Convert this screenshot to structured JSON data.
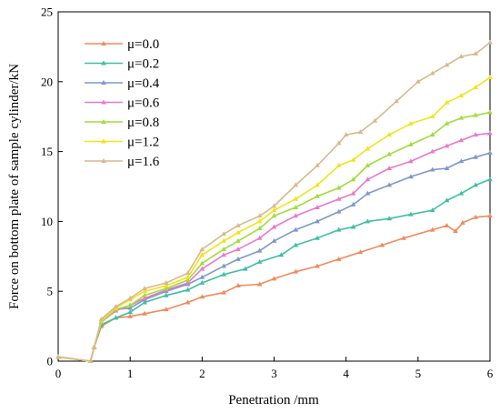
{
  "chart_data": {
    "type": "line",
    "xlabel": "Penetration /mm",
    "ylabel": "Force on bottom plate of sample cylinder/kN",
    "xlim": [
      0,
      6
    ],
    "ylim": [
      0,
      25
    ],
    "xticks": [
      0,
      1,
      2,
      3,
      4,
      5,
      6
    ],
    "yticks": [
      0,
      5,
      10,
      15,
      20,
      25
    ],
    "xtick_labels": [
      "0",
      "1",
      "2",
      "3",
      "4",
      "5",
      "6"
    ],
    "ytick_labels": [
      "0",
      "5",
      "10",
      "15",
      "20",
      "25"
    ],
    "legend_position": "top-left",
    "grid": false,
    "marker": "triangle-up",
    "series": [
      {
        "name": "μ=0.0",
        "color": "#F08A5D",
        "points": [
          [
            0,
            0.3
          ],
          [
            0.45,
            0
          ],
          [
            0.5,
            1.0
          ],
          [
            0.6,
            2.5
          ],
          [
            0.8,
            3.1
          ],
          [
            1.0,
            3.2
          ],
          [
            1.2,
            3.4
          ],
          [
            1.5,
            3.7
          ],
          [
            1.8,
            4.2
          ],
          [
            2.0,
            4.6
          ],
          [
            2.3,
            4.9
          ],
          [
            2.5,
            5.4
          ],
          [
            2.8,
            5.5
          ],
          [
            3.0,
            5.9
          ],
          [
            3.3,
            6.4
          ],
          [
            3.6,
            6.8
          ],
          [
            3.9,
            7.3
          ],
          [
            4.2,
            7.8
          ],
          [
            4.5,
            8.3
          ],
          [
            4.8,
            8.8
          ],
          [
            5.2,
            9.4
          ],
          [
            5.4,
            9.7
          ],
          [
            5.52,
            9.3
          ],
          [
            5.62,
            9.9
          ],
          [
            5.8,
            10.3
          ],
          [
            6.0,
            10.4
          ]
        ]
      },
      {
        "name": "μ=0.2",
        "color": "#3EBFA0",
        "points": [
          [
            0,
            0.3
          ],
          [
            0.45,
            0
          ],
          [
            0.5,
            1.0
          ],
          [
            0.6,
            2.6
          ],
          [
            0.8,
            3.1
          ],
          [
            1.0,
            3.5
          ],
          [
            1.2,
            4.2
          ],
          [
            1.5,
            4.7
          ],
          [
            1.8,
            5.1
          ],
          [
            2.0,
            5.6
          ],
          [
            2.3,
            6.2
          ],
          [
            2.6,
            6.6
          ],
          [
            2.8,
            7.1
          ],
          [
            3.1,
            7.6
          ],
          [
            3.3,
            8.3
          ],
          [
            3.6,
            8.8
          ],
          [
            3.9,
            9.4
          ],
          [
            4.1,
            9.6
          ],
          [
            4.3,
            10.0
          ],
          [
            4.6,
            10.2
          ],
          [
            4.9,
            10.5
          ],
          [
            5.2,
            10.8
          ],
          [
            5.4,
            11.5
          ],
          [
            5.6,
            12.0
          ],
          [
            5.8,
            12.6
          ],
          [
            6.0,
            13.0
          ]
        ]
      },
      {
        "name": "μ=0.4",
        "color": "#7F98C9",
        "points": [
          [
            0,
            0.3
          ],
          [
            0.45,
            0
          ],
          [
            0.5,
            1.0
          ],
          [
            0.6,
            2.8
          ],
          [
            0.8,
            3.7
          ],
          [
            1.0,
            3.8
          ],
          [
            1.2,
            4.4
          ],
          [
            1.5,
            5.0
          ],
          [
            1.8,
            5.5
          ],
          [
            2.0,
            6.0
          ],
          [
            2.3,
            6.8
          ],
          [
            2.5,
            7.3
          ],
          [
            2.8,
            7.9
          ],
          [
            3.0,
            8.6
          ],
          [
            3.3,
            9.4
          ],
          [
            3.6,
            10.0
          ],
          [
            3.9,
            10.7
          ],
          [
            4.1,
            11.2
          ],
          [
            4.3,
            12.0
          ],
          [
            4.6,
            12.6
          ],
          [
            4.9,
            13.2
          ],
          [
            5.2,
            13.7
          ],
          [
            5.4,
            13.8
          ],
          [
            5.6,
            14.3
          ],
          [
            5.8,
            14.6
          ],
          [
            6.0,
            14.9
          ]
        ]
      },
      {
        "name": "μ=0.6",
        "color": "#E879CD",
        "points": [
          [
            0,
            0.3
          ],
          [
            0.45,
            0
          ],
          [
            0.5,
            1.0
          ],
          [
            0.6,
            2.8
          ],
          [
            0.8,
            3.6
          ],
          [
            1.0,
            4.0
          ],
          [
            1.2,
            4.5
          ],
          [
            1.5,
            5.1
          ],
          [
            1.8,
            5.6
          ],
          [
            2.0,
            6.6
          ],
          [
            2.3,
            7.6
          ],
          [
            2.5,
            8.0
          ],
          [
            2.8,
            8.8
          ],
          [
            3.0,
            9.6
          ],
          [
            3.3,
            10.4
          ],
          [
            3.6,
            11.0
          ],
          [
            3.9,
            11.6
          ],
          [
            4.1,
            12.0
          ],
          [
            4.3,
            13.0
          ],
          [
            4.6,
            13.8
          ],
          [
            4.9,
            14.3
          ],
          [
            5.2,
            15.0
          ],
          [
            5.4,
            15.4
          ],
          [
            5.6,
            15.8
          ],
          [
            5.8,
            16.2
          ],
          [
            6.0,
            16.3
          ]
        ]
      },
      {
        "name": "μ=0.8",
        "color": "#A0DC3C",
        "points": [
          [
            0,
            0.3
          ],
          [
            0.45,
            0
          ],
          [
            0.5,
            1.0
          ],
          [
            0.6,
            2.8
          ],
          [
            0.8,
            3.7
          ],
          [
            1.0,
            4.0
          ],
          [
            1.2,
            4.7
          ],
          [
            1.5,
            5.2
          ],
          [
            1.8,
            5.8
          ],
          [
            2.0,
            7.0
          ],
          [
            2.3,
            8.0
          ],
          [
            2.5,
            8.6
          ],
          [
            2.8,
            9.5
          ],
          [
            3.0,
            10.4
          ],
          [
            3.3,
            11.0
          ],
          [
            3.6,
            11.8
          ],
          [
            3.9,
            12.4
          ],
          [
            4.1,
            13.0
          ],
          [
            4.3,
            14.0
          ],
          [
            4.6,
            14.8
          ],
          [
            4.9,
            15.5
          ],
          [
            5.2,
            16.2
          ],
          [
            5.4,
            17.0
          ],
          [
            5.6,
            17.4
          ],
          [
            5.8,
            17.6
          ],
          [
            6.0,
            17.8
          ]
        ]
      },
      {
        "name": "μ=1.2",
        "color": "#F2E31A",
        "points": [
          [
            0,
            0.3
          ],
          [
            0.45,
            0
          ],
          [
            0.5,
            1.0
          ],
          [
            0.6,
            2.9
          ],
          [
            0.8,
            3.8
          ],
          [
            1.0,
            4.4
          ],
          [
            1.2,
            5.0
          ],
          [
            1.5,
            5.4
          ],
          [
            1.8,
            6.0
          ],
          [
            2.0,
            7.6
          ],
          [
            2.3,
            8.6
          ],
          [
            2.5,
            9.2
          ],
          [
            2.8,
            10.0
          ],
          [
            3.0,
            10.8
          ],
          [
            3.3,
            11.6
          ],
          [
            3.6,
            12.6
          ],
          [
            3.9,
            14.0
          ],
          [
            4.1,
            14.4
          ],
          [
            4.3,
            15.2
          ],
          [
            4.6,
            16.2
          ],
          [
            4.9,
            17.0
          ],
          [
            5.2,
            17.5
          ],
          [
            5.4,
            18.5
          ],
          [
            5.6,
            19.0
          ],
          [
            5.8,
            19.6
          ],
          [
            6.0,
            20.3
          ]
        ]
      },
      {
        "name": "μ=1.6",
        "color": "#D9B98C",
        "points": [
          [
            0,
            0.3
          ],
          [
            0.45,
            0
          ],
          [
            0.5,
            1.0
          ],
          [
            0.6,
            3.0
          ],
          [
            0.8,
            3.9
          ],
          [
            1.0,
            4.5
          ],
          [
            1.2,
            5.2
          ],
          [
            1.5,
            5.6
          ],
          [
            1.8,
            6.3
          ],
          [
            2.0,
            8.0
          ],
          [
            2.3,
            9.1
          ],
          [
            2.5,
            9.7
          ],
          [
            2.8,
            10.4
          ],
          [
            3.0,
            11.1
          ],
          [
            3.3,
            12.6
          ],
          [
            3.6,
            14.0
          ],
          [
            3.9,
            15.6
          ],
          [
            4.0,
            16.2
          ],
          [
            4.2,
            16.4
          ],
          [
            4.4,
            17.2
          ],
          [
            4.7,
            18.6
          ],
          [
            5.0,
            20.0
          ],
          [
            5.2,
            20.6
          ],
          [
            5.4,
            21.2
          ],
          [
            5.6,
            21.8
          ],
          [
            5.8,
            22.0
          ],
          [
            6.0,
            22.8
          ]
        ]
      }
    ]
  }
}
